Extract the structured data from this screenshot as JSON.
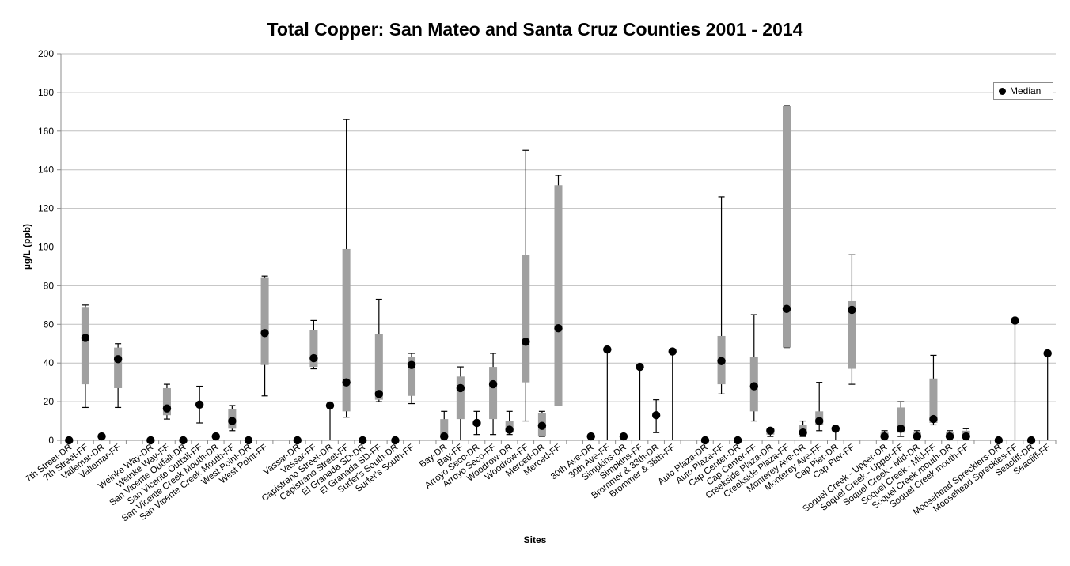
{
  "chart_data": {
    "type": "boxplot",
    "title": "Total Copper:  San Mateo and Santa Cruz Counties  2001 - 2014",
    "ylabel": "µg/L  (ppb)",
    "xlabel": "Sites",
    "ylim": [
      0,
      200
    ],
    "yticks": [
      0,
      20,
      40,
      60,
      80,
      100,
      120,
      140,
      160,
      180,
      200
    ],
    "grid": true,
    "legend": {
      "position": "top-right",
      "entries": [
        "Median"
      ]
    },
    "colors": {
      "box": "#a0a0a0",
      "median": "#000000",
      "whisker": "#000000",
      "grid": "#bfbfbf"
    },
    "categories": [
      "7th Street-DR",
      "7th Street-FF",
      "Vallemar-DR",
      "Vallemar-FF",
      "",
      "Weinke Way-DR",
      "Weinke Way-FF",
      "San Vicente Outfall-DR",
      "San Vicente Outfall-FF",
      "San Vicente Creek Mouth-DR",
      "San Vicente Creek Mouth-FF",
      "West Point-DR",
      "West Point-FF",
      "",
      "Vassar-DR",
      "Vassar-FF",
      "Capistrano Street-DR",
      "Capistrano Street-FF",
      "El Granada SD-DR",
      "El Granada SD-FF",
      "Surfer's South-DR",
      "Surfer's South-FF",
      "",
      "Bay-DR",
      "Bay-FF",
      "Arroyo Seco-DR",
      "Arroyo Seco-FF",
      "Woodrow-DR",
      "Woodrow-FF",
      "Merced-DR",
      "Merced-FF",
      "",
      "30th Ave-DR",
      "30th Ave-FF",
      "Simpkins-DR",
      "Simpkins-FF",
      "Brommer & 38th-DR",
      "Brommer & 38th-FF",
      "",
      "Auto Plaza-DR",
      "Auto Plaza-FF",
      "Cap Center-DR",
      "Cap Center-FF",
      "Creekside Plaza-DR",
      "Creekside Plaza-FF",
      "Monterey Ave-DR",
      "Monterey Ave-FF",
      "Cap Pier-DR",
      "Cap Pier-FF",
      "",
      "Soquel Creek - Upper-DR",
      "Soquel Creek - Upper-FF",
      "Soquel Creek - Mid-DR",
      "Soquel Creek - Mid-FF",
      "Soquel Creek mouth-DR",
      "Soquel Creek mouth-FF",
      "",
      "Moosehead Sprecklers-DR",
      "Moosehead Spreckles-FF",
      "Seacliff-DR",
      "Seacliff-FF"
    ],
    "series": [
      {
        "name": "Median",
        "values": [
          {
            "median": 0
          },
          {
            "min": 17,
            "q1": 29,
            "median": 53,
            "q3": 69,
            "max": 70
          },
          {
            "median": 2
          },
          {
            "min": 17,
            "q1": 27,
            "median": 42,
            "q3": 48,
            "max": 50
          },
          null,
          {
            "median": 0
          },
          {
            "min": 11,
            "q1": 13,
            "median": 16.5,
            "q3": 27,
            "max": 29
          },
          {
            "median": 0
          },
          {
            "min": 9,
            "median": 18.5,
            "max": 28
          },
          {
            "median": 2
          },
          {
            "min": 5,
            "q1": 6,
            "median": 10,
            "q3": 16,
            "max": 18
          },
          {
            "median": 0
          },
          {
            "min": 23,
            "q1": 39,
            "median": 55.5,
            "q3": 84,
            "max": 85
          },
          null,
          {
            "median": 0
          },
          {
            "min": 37,
            "q1": 38,
            "median": 42.5,
            "q3": 57,
            "max": 62
          },
          {
            "min": 0,
            "median": 18,
            "max": 18
          },
          {
            "min": 12,
            "q1": 15,
            "median": 30,
            "q3": 99,
            "max": 166
          },
          {
            "median": 0
          },
          {
            "min": 20,
            "q1": 21,
            "median": 24,
            "q3": 55,
            "max": 73
          },
          {
            "median": 0
          },
          {
            "min": 19,
            "q1": 23,
            "median": 39,
            "q3": 43,
            "max": 45
          },
          null,
          {
            "min": 0,
            "q1": 2,
            "median": 2,
            "q3": 11,
            "max": 15
          },
          {
            "min": 0,
            "q1": 11,
            "median": 27,
            "q3": 33,
            "max": 38
          },
          {
            "min": 3,
            "median": 9,
            "max": 15
          },
          {
            "min": 3,
            "q1": 11,
            "median": 29,
            "q3": 38,
            "max": 45
          },
          {
            "min": 3,
            "q1": 4,
            "median": 5.5,
            "q3": 10,
            "max": 15
          },
          {
            "min": 10,
            "q1": 30,
            "median": 51,
            "q3": 96,
            "max": 150
          },
          {
            "min": 2,
            "q1": 2,
            "median": 7.5,
            "q3": 14,
            "max": 15
          },
          {
            "min": 18,
            "q1": 18,
            "median": 58,
            "q3": 132,
            "max": 137
          },
          null,
          {
            "median": 2
          },
          {
            "min": 0,
            "median": 47,
            "max": 47
          },
          {
            "median": 2
          },
          {
            "min": 0,
            "median": 38,
            "max": 38
          },
          {
            "min": 4,
            "median": 13,
            "max": 21
          },
          {
            "min": 0,
            "median": 46,
            "max": 46
          },
          null,
          {
            "median": 0
          },
          {
            "min": 24,
            "q1": 29,
            "median": 41,
            "q3": 54,
            "max": 126
          },
          {
            "median": 0
          },
          {
            "min": 10,
            "q1": 15,
            "median": 28,
            "q3": 43,
            "max": 65
          },
          {
            "min": 2,
            "q1": 3,
            "median": 5,
            "q3": 6,
            "max": 6
          },
          {
            "min": 48,
            "q1": 48,
            "median": 68,
            "q3": 173,
            "max": 173
          },
          {
            "min": 2,
            "q1": 3,
            "median": 4,
            "q3": 8,
            "max": 10
          },
          {
            "min": 5,
            "q1": 8,
            "median": 10,
            "q3": 15,
            "max": 30
          },
          {
            "min": 0,
            "median": 6,
            "max": 6
          },
          {
            "min": 29,
            "q1": 37,
            "median": 67.5,
            "q3": 72,
            "max": 96
          },
          null,
          {
            "min": 1,
            "q1": 2,
            "median": 2,
            "q3": 4,
            "max": 5
          },
          {
            "min": 2,
            "q1": 4,
            "median": 6,
            "q3": 17,
            "max": 20
          },
          {
            "min": 1,
            "q1": 2,
            "median": 2,
            "q3": 4,
            "max": 5
          },
          {
            "min": 8,
            "q1": 9,
            "median": 11,
            "q3": 32,
            "max": 44
          },
          {
            "min": 1,
            "q1": 2,
            "median": 2,
            "q3": 4,
            "max": 5
          },
          {
            "min": 1,
            "q1": 2,
            "median": 2,
            "q3": 5,
            "max": 6
          },
          null,
          {
            "median": 0
          },
          {
            "min": 0,
            "median": 62,
            "max": 62
          },
          {
            "median": 0
          },
          {
            "min": 0,
            "median": 45,
            "max": 45
          }
        ]
      }
    ]
  }
}
